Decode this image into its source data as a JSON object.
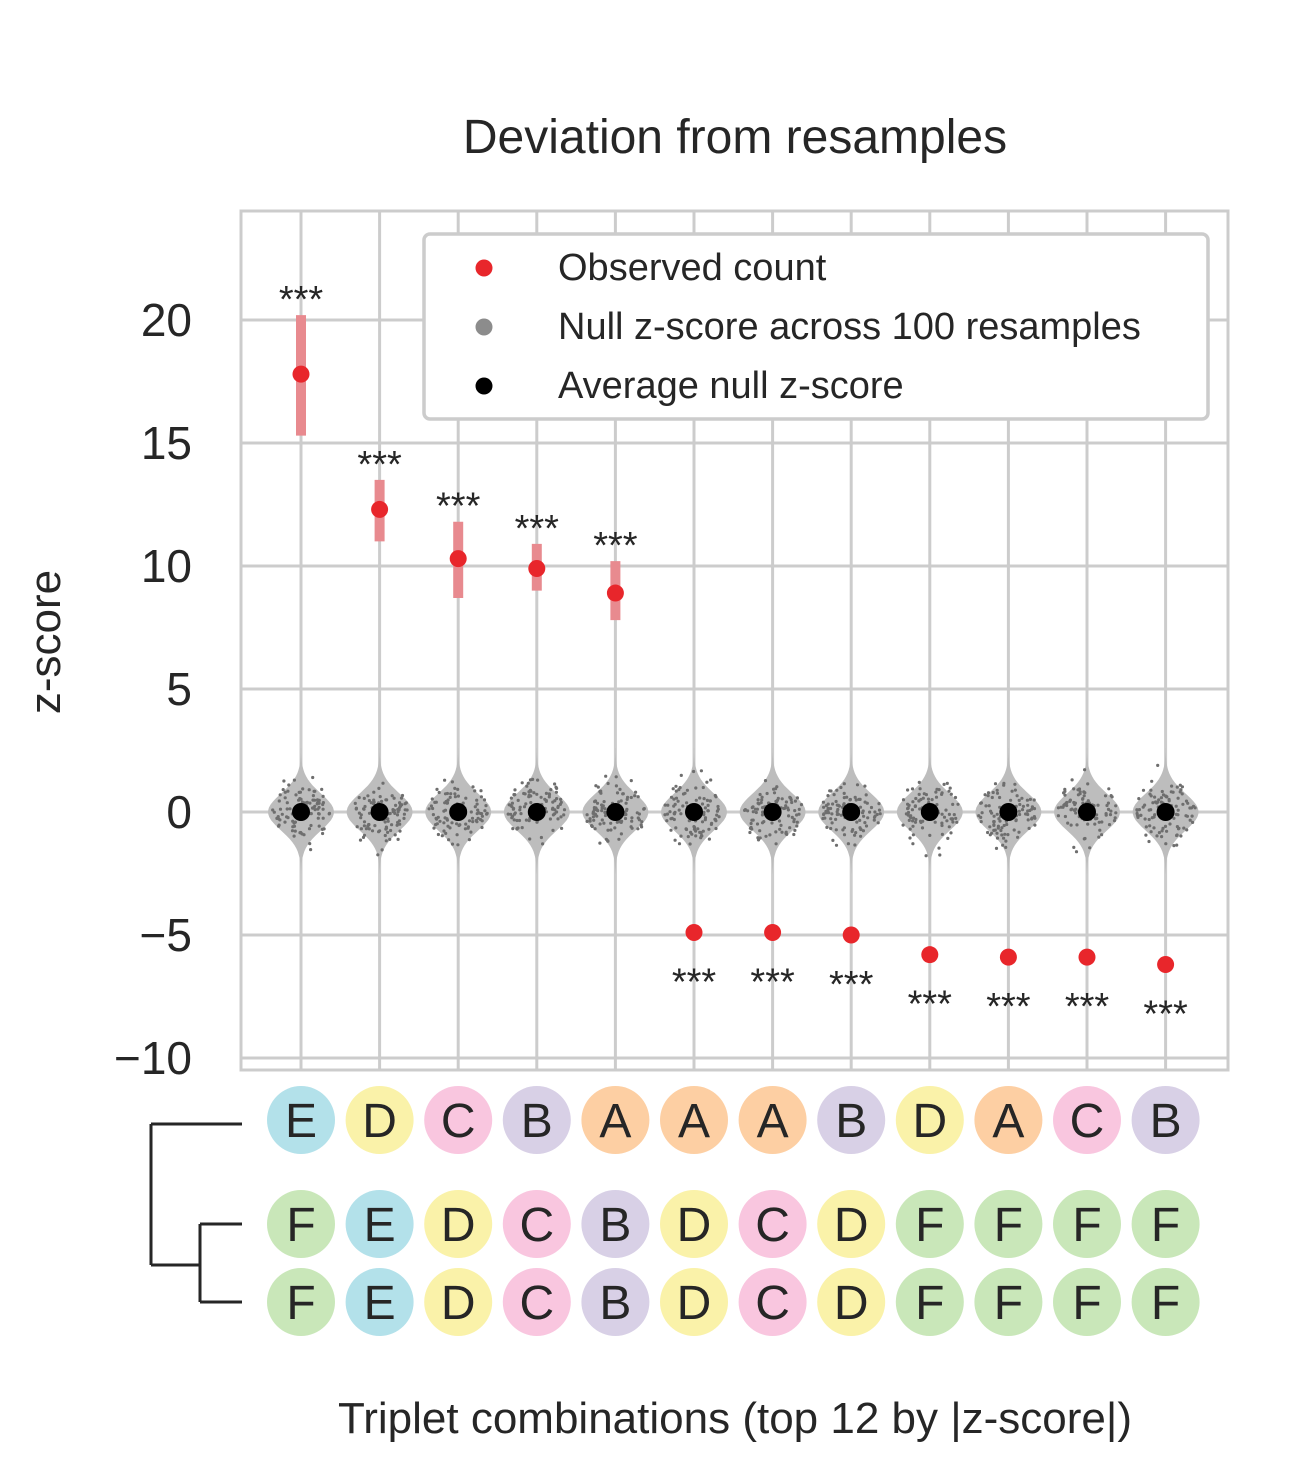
{
  "chart_data": {
    "type": "scatter",
    "title": "Deviation from resamples",
    "ylabel": "z-score",
    "xlabel": "Triplet combinations (top 12 by |z-score|)",
    "ylim": [
      -10.5,
      24
    ],
    "yticks": [
      20,
      15,
      10,
      5,
      0,
      -5,
      -10
    ],
    "ytick_labels": [
      "20",
      "15",
      "10",
      "5",
      "0",
      "−5",
      "−10"
    ],
    "grid": true,
    "legend": {
      "placement": "top-right",
      "entries": [
        {
          "label": "Observed count",
          "color": "#e8262b"
        },
        {
          "label": "Null z-score across 100 resamples",
          "color": "#8c8c8c"
        },
        {
          "label": "Average null z-score",
          "color": "#000000"
        }
      ]
    },
    "colors": {
      "observed": "#e8262b",
      "observed_interval": "#e88a8f",
      "null_violin": "#bdbdbd",
      "null_points": "#6e6e6e",
      "average_null": "#000000",
      "grid": "#cccccc"
    },
    "category_colors": {
      "A": "#fdcfa3",
      "B": "#d8d0e6",
      "C": "#f9c6df",
      "D": "#faf2a9",
      "E": "#b3e1ea",
      "F": "#c9e7b9"
    },
    "triplets": [
      [
        "E",
        "F",
        "F"
      ],
      [
        "D",
        "E",
        "E"
      ],
      [
        "C",
        "D",
        "D"
      ],
      [
        "B",
        "C",
        "C"
      ],
      [
        "A",
        "B",
        "B"
      ],
      [
        "A",
        "D",
        "D"
      ],
      [
        "A",
        "C",
        "C"
      ],
      [
        "B",
        "D",
        "D"
      ],
      [
        "D",
        "F",
        "F"
      ],
      [
        "A",
        "F",
        "F"
      ],
      [
        "C",
        "F",
        "F"
      ],
      [
        "B",
        "F",
        "F"
      ]
    ],
    "series": [
      {
        "name": "Observed count",
        "values": [
          17.8,
          12.3,
          10.3,
          9.9,
          8.9,
          -4.9,
          -4.9,
          -5.0,
          -5.8,
          -5.9,
          -5.9,
          -6.2
        ],
        "interval": [
          [
            15.3,
            20.2
          ],
          [
            11.0,
            13.5
          ],
          [
            8.7,
            11.8
          ],
          [
            9.0,
            10.9
          ],
          [
            7.8,
            10.2
          ],
          null,
          null,
          null,
          null,
          null,
          null,
          null
        ]
      },
      {
        "name": "Average null z-score",
        "values": [
          0,
          0,
          0,
          0,
          0,
          0,
          0,
          0,
          0,
          0,
          0,
          0
        ]
      }
    ],
    "null_range": [
      -2.5,
      2.6
    ],
    "significance": [
      "***",
      "***",
      "***",
      "***",
      "***",
      "***",
      "***",
      "***",
      "***",
      "***",
      "***",
      "***"
    ]
  }
}
